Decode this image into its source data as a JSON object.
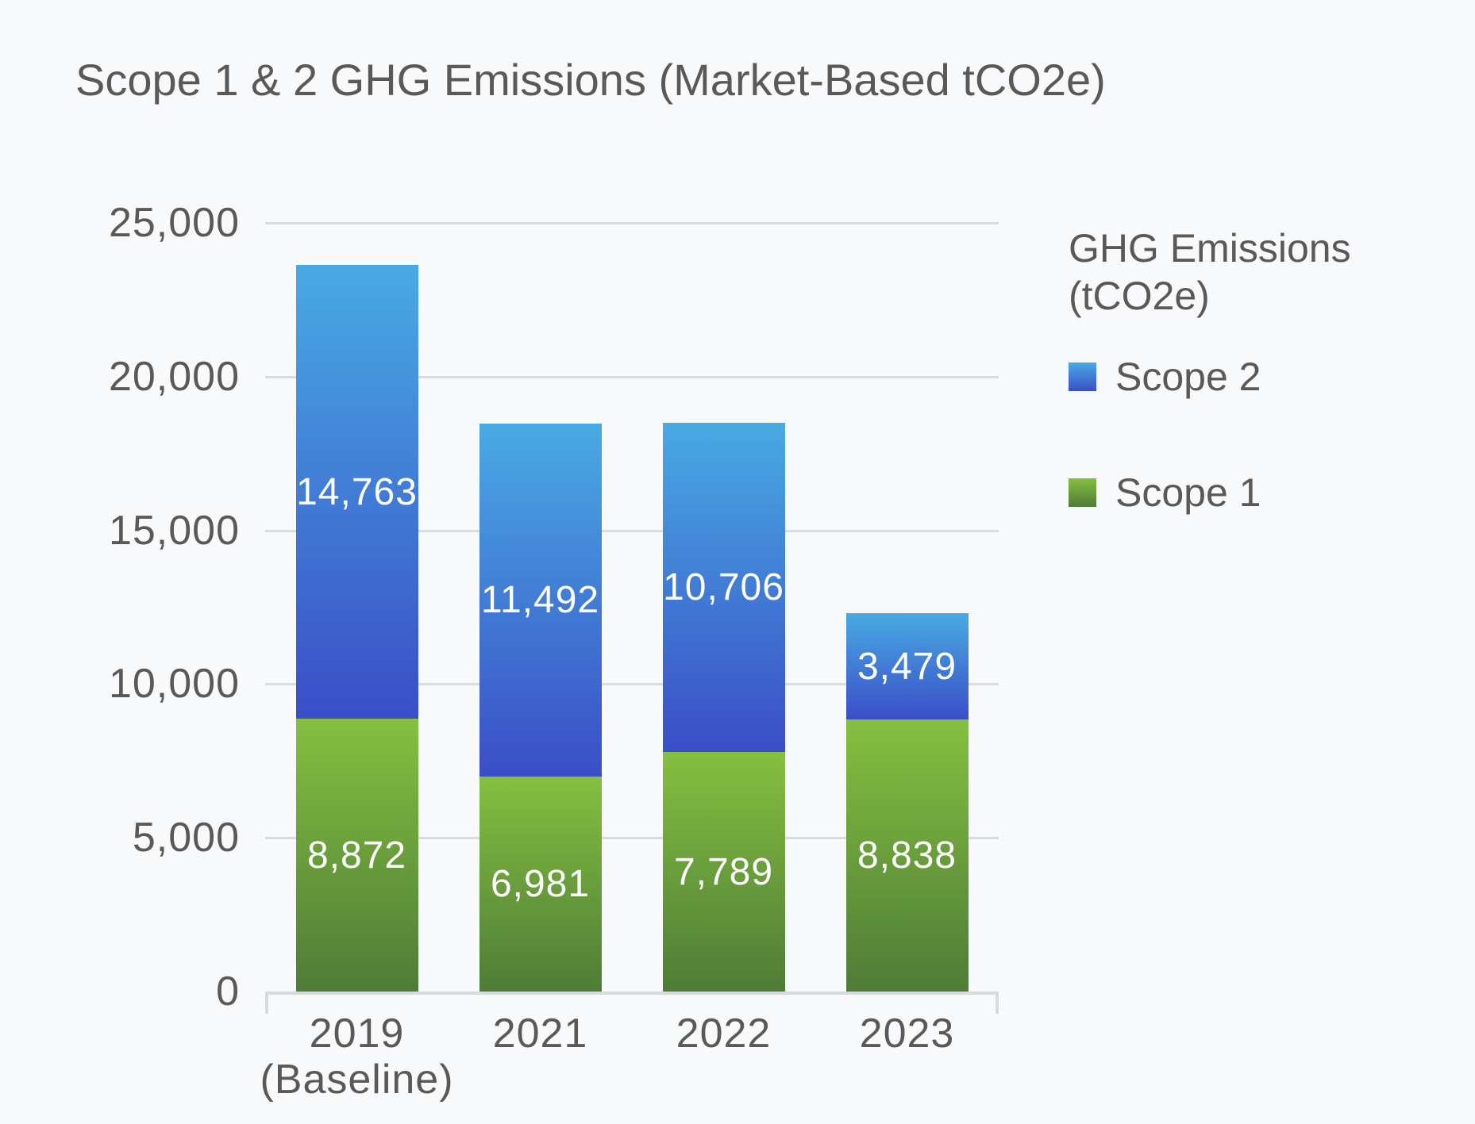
{
  "title": "Scope 1 & 2 GHG Emissions (Market-Based tCO2e)",
  "colors": {
    "background": "#f8f9fb",
    "text": "#595959",
    "gridline": "#d9dadd",
    "data_label": "#ffffff",
    "scope2_gradient_top": "#49aae3",
    "scope2_gradient_bottom": "#3a4ec7",
    "scope1_gradient_top": "#86bf40",
    "scope1_gradient_bottom": "#4e7c37"
  },
  "chart_data": {
    "type": "bar",
    "stacked": true,
    "title": "Scope 1 & 2 GHG Emissions (Market-Based tCO2e)",
    "categories": [
      {
        "label": "2019",
        "sublabel": "(Baseline)"
      },
      {
        "label": "2021",
        "sublabel": ""
      },
      {
        "label": "2022",
        "sublabel": ""
      },
      {
        "label": "2023",
        "sublabel": ""
      }
    ],
    "series": [
      {
        "name": "Scope 1",
        "color": "green",
        "values": [
          8872,
          6981,
          7789,
          8838
        ],
        "labels": [
          "8,872",
          "6,981",
          "7,789",
          "8,838"
        ]
      },
      {
        "name": "Scope 2",
        "color": "blue",
        "values": [
          14763,
          11492,
          10706,
          3479
        ],
        "labels": [
          "14,763",
          "11,492",
          "10,706",
          "3,479"
        ]
      }
    ],
    "ylim": [
      0,
      25000
    ],
    "yticks": [
      {
        "value": 0,
        "label": "0"
      },
      {
        "value": 5000,
        "label": "5,000"
      },
      {
        "value": 10000,
        "label": "10,000"
      },
      {
        "value": 15000,
        "label": "15,000"
      },
      {
        "value": 20000,
        "label": "20,000"
      },
      {
        "value": 25000,
        "label": "25,000"
      }
    ],
    "xlabel": "",
    "ylabel": "",
    "grid": true,
    "legend_position": "right",
    "legend_title_line1": "GHG Emissions",
    "legend_title_line2": "(tCO2e)",
    "legend_items": [
      {
        "name": "Scope 2",
        "color": "blue"
      },
      {
        "name": "Scope 1",
        "color": "green"
      }
    ]
  }
}
